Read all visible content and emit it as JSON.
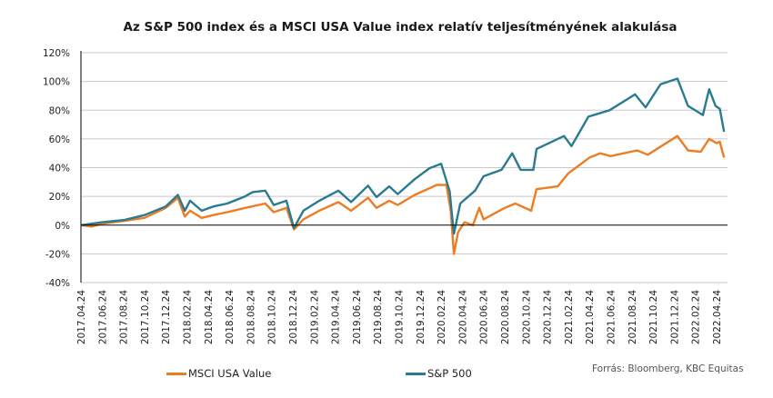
{
  "chart_data": {
    "type": "line",
    "title": "Az S&P 500 index és a MSCI USA Value index relatív teljesítményének alakulása",
    "xlabel": "",
    "ylabel": "",
    "ylim": [
      -40,
      120
    ],
    "y_ticks": [
      -40,
      -20,
      0,
      20,
      40,
      60,
      80,
      100,
      120
    ],
    "y_tick_labels": [
      "-40%",
      "-20%",
      "0%",
      "20%",
      "40%",
      "60%",
      "80%",
      "100%",
      "120%"
    ],
    "x_unit": "months since 2017.04.24",
    "x_tick_labels": [
      "2017.04.24",
      "2017.06.24",
      "2017.08.24",
      "2017.10.24",
      "2017.12.24",
      "2018.02.24",
      "2018.04.24",
      "2018.06.24",
      "2018.08.24",
      "2018.10.24",
      "2018.12.24",
      "2019.02.24",
      "2019.04.24",
      "2019.06.24",
      "2019.08.24",
      "2019.10.24",
      "2019.12.24",
      "2020.02.24",
      "2020.04.24",
      "2020.06.24",
      "2020.08.24",
      "2020.10.24",
      "2020.12.24",
      "2021.02.24",
      "2021.04.24",
      "2021.06.24",
      "2021.08.24",
      "2021.10.24",
      "2021.12.24",
      "2022.02.24",
      "2022.04.24"
    ],
    "grid": true,
    "legend_position": "bottom",
    "series": [
      {
        "name": "MSCI USA Value",
        "color": "#ed7d22",
        "points": [
          [
            0,
            0
          ],
          [
            1,
            -1
          ],
          [
            2,
            1
          ],
          [
            4.1,
            3
          ],
          [
            6,
            5
          ],
          [
            8,
            12
          ],
          [
            9.15,
            19
          ],
          [
            9.8,
            6
          ],
          [
            10.3,
            10
          ],
          [
            11.4,
            5
          ],
          [
            12.5,
            7
          ],
          [
            13.8,
            9
          ],
          [
            15.5,
            12
          ],
          [
            17.4,
            15
          ],
          [
            18.2,
            9
          ],
          [
            19.4,
            12
          ],
          [
            20.1,
            -3
          ],
          [
            21,
            4
          ],
          [
            22.5,
            10
          ],
          [
            24.3,
            16
          ],
          [
            25.5,
            10
          ],
          [
            27.1,
            19
          ],
          [
            27.9,
            12
          ],
          [
            29.1,
            17
          ],
          [
            29.9,
            14
          ],
          [
            31.5,
            21
          ],
          [
            33.6,
            28
          ],
          [
            34.5,
            28
          ],
          [
            34.9,
            10
          ],
          [
            35.2,
            -20
          ],
          [
            35.6,
            -5
          ],
          [
            36.2,
            2
          ],
          [
            37,
            0
          ],
          [
            37.6,
            12
          ],
          [
            38,
            4
          ],
          [
            40,
            12
          ],
          [
            41,
            15
          ],
          [
            42.5,
            10
          ],
          [
            43,
            25
          ],
          [
            45,
            27
          ],
          [
            46,
            36
          ],
          [
            48,
            47
          ],
          [
            49,
            50
          ],
          [
            50,
            48
          ],
          [
            52.5,
            52
          ],
          [
            53.5,
            49
          ],
          [
            55,
            56
          ],
          [
            56.3,
            62
          ],
          [
            57.3,
            52
          ],
          [
            58.5,
            51
          ],
          [
            59.3,
            60
          ],
          [
            60,
            57
          ],
          [
            60.3,
            58
          ],
          [
            60.7,
            47
          ]
        ]
      },
      {
        "name": "S&P 500",
        "color": "#2a7a90",
        "points": [
          [
            0,
            0
          ],
          [
            1,
            1
          ],
          [
            2,
            2
          ],
          [
            4.1,
            3.6
          ],
          [
            6,
            7
          ],
          [
            8,
            13
          ],
          [
            9.15,
            21
          ],
          [
            9.8,
            10
          ],
          [
            10.3,
            17
          ],
          [
            11.4,
            10
          ],
          [
            12.5,
            13
          ],
          [
            13.8,
            15
          ],
          [
            15.5,
            20
          ],
          [
            16.2,
            23
          ],
          [
            17.4,
            24
          ],
          [
            18.2,
            14
          ],
          [
            19.4,
            17
          ],
          [
            20.1,
            -2
          ],
          [
            21,
            10
          ],
          [
            22.5,
            17
          ],
          [
            24.3,
            24
          ],
          [
            25.5,
            16
          ],
          [
            27.1,
            27.5
          ],
          [
            27.9,
            19.5
          ],
          [
            29.1,
            27
          ],
          [
            29.9,
            21.6
          ],
          [
            31.5,
            32
          ],
          [
            32.9,
            39.6
          ],
          [
            34,
            42.7
          ],
          [
            34.8,
            23.7
          ],
          [
            35.2,
            -6
          ],
          [
            35.8,
            15
          ],
          [
            37.2,
            24
          ],
          [
            38,
            34
          ],
          [
            39.7,
            38.5
          ],
          [
            40.7,
            50
          ],
          [
            41.5,
            38.5
          ],
          [
            42.7,
            38.5
          ],
          [
            43,
            53
          ],
          [
            45.6,
            62
          ],
          [
            46.3,
            55
          ],
          [
            47.9,
            75.5
          ],
          [
            49.9,
            80
          ],
          [
            52.3,
            91
          ],
          [
            53.3,
            82
          ],
          [
            54.7,
            98
          ],
          [
            56.3,
            102
          ],
          [
            57.3,
            83
          ],
          [
            58.7,
            76.6
          ],
          [
            59.3,
            94.6
          ],
          [
            59.9,
            83
          ],
          [
            60.3,
            81
          ],
          [
            60.7,
            65
          ]
        ]
      }
    ]
  },
  "source": "Forrás: Bloomberg, KBC Equitas"
}
